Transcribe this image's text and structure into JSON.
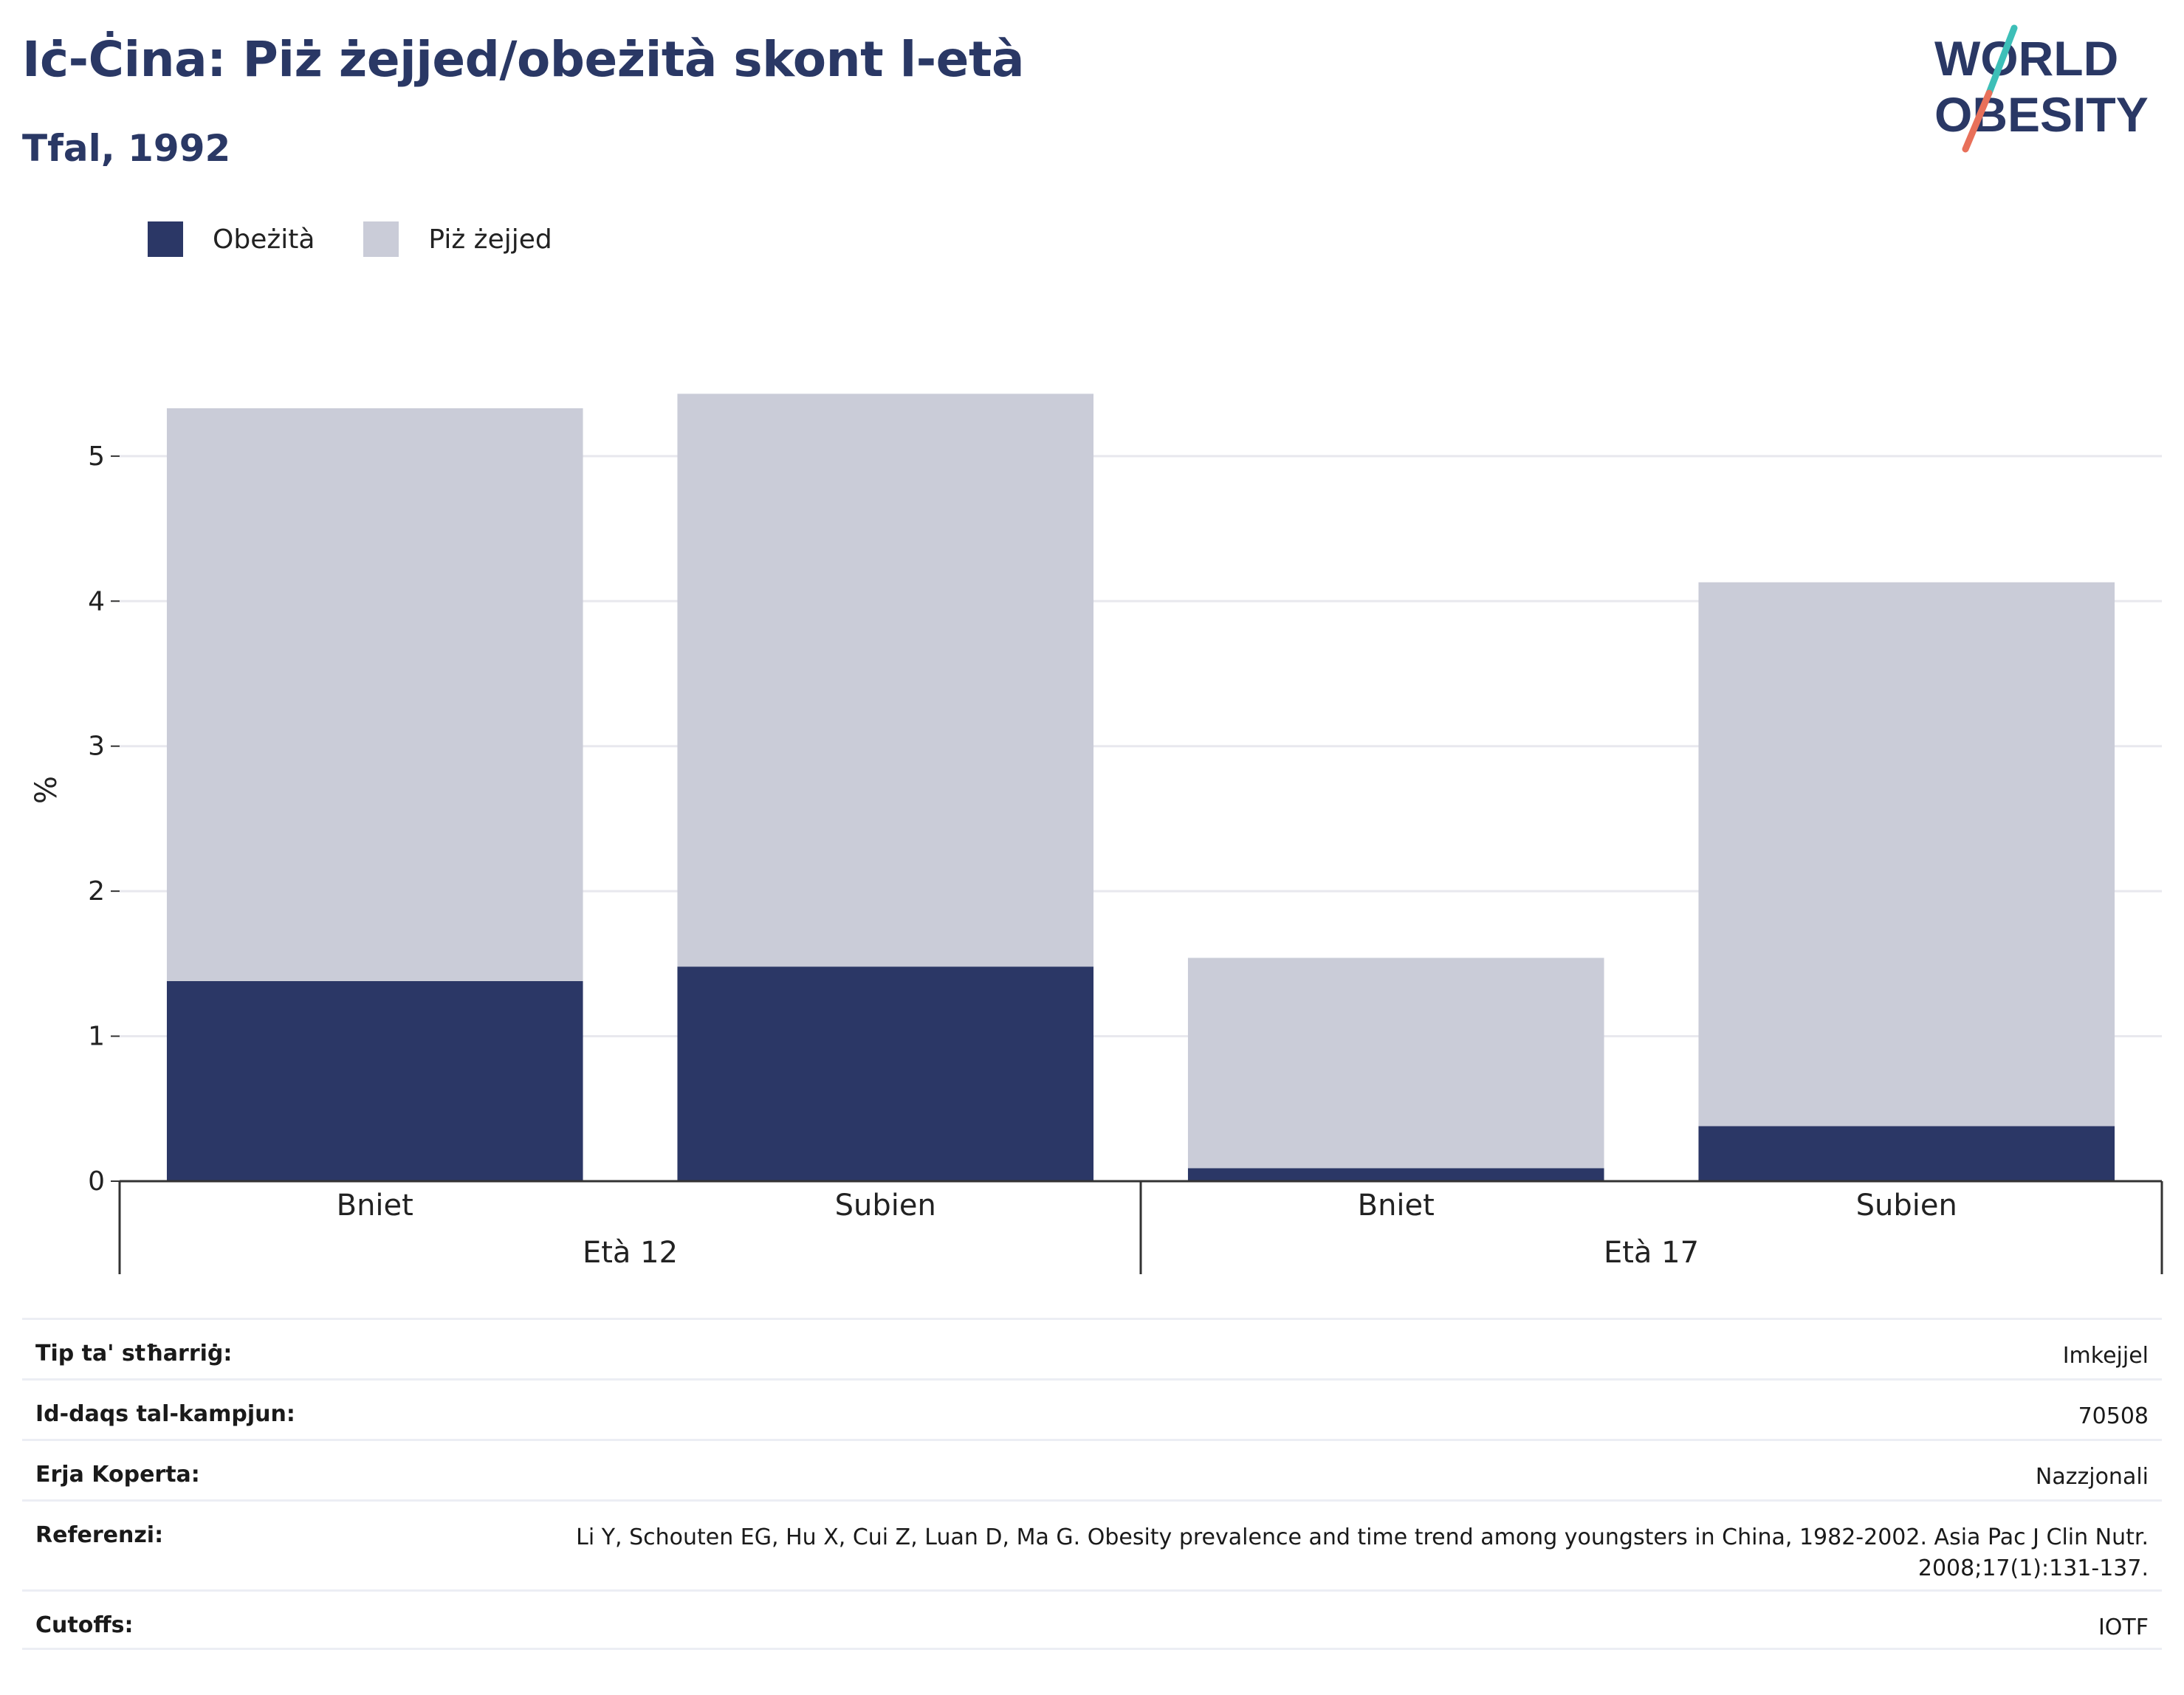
{
  "header": {
    "title": "Iċ-Ċina: Piż żejjed/obeżità skont l-età",
    "subtitle": "Tfal, 1992"
  },
  "logo": {
    "line1": "WORLD",
    "line2": "OBESITY",
    "accent_colors": [
      "#3dbfb8",
      "#e8705a"
    ],
    "text_color": "#2a3865"
  },
  "colors": {
    "obesity": "#2b3766",
    "overweight": "#caccd8",
    "grid": "#e8e8ee",
    "axis": "#333333"
  },
  "chart_data": {
    "type": "bar",
    "stacked": true,
    "ylabel": "%",
    "ylim": [
      0,
      5.6
    ],
    "yticks": [
      0,
      1,
      2,
      3,
      4,
      5
    ],
    "groups": [
      {
        "label": "Età 12",
        "categories": [
          "Bniet",
          "Subien"
        ]
      },
      {
        "label": "Età 17",
        "categories": [
          "Bniet",
          "Subien"
        ]
      }
    ],
    "series": [
      {
        "name": "Obeżità",
        "values": [
          1.38,
          1.48,
          0.09,
          0.38
        ]
      },
      {
        "name": "Piż żejjed",
        "values": [
          3.95,
          3.95,
          1.45,
          3.75
        ]
      }
    ],
    "legend_position": "top-left",
    "grid": true
  },
  "info": [
    {
      "label": "Tip ta' stħarriġ:",
      "value": "Imkejjel"
    },
    {
      "label": "Id-daqs tal-kampjun:",
      "value": "70508"
    },
    {
      "label": "Erja Koperta:",
      "value": "Nazzjonali"
    },
    {
      "label": "Referenzi:",
      "value": "Li Y, Schouten EG, Hu X, Cui Z, Luan D, Ma G. Obesity prevalence and time trend among youngsters in China, 1982-2002. Asia Pac J Clin Nutr. 2008;17(1):131-137."
    },
    {
      "label": "Cutoffs:",
      "value": "IOTF"
    }
  ]
}
